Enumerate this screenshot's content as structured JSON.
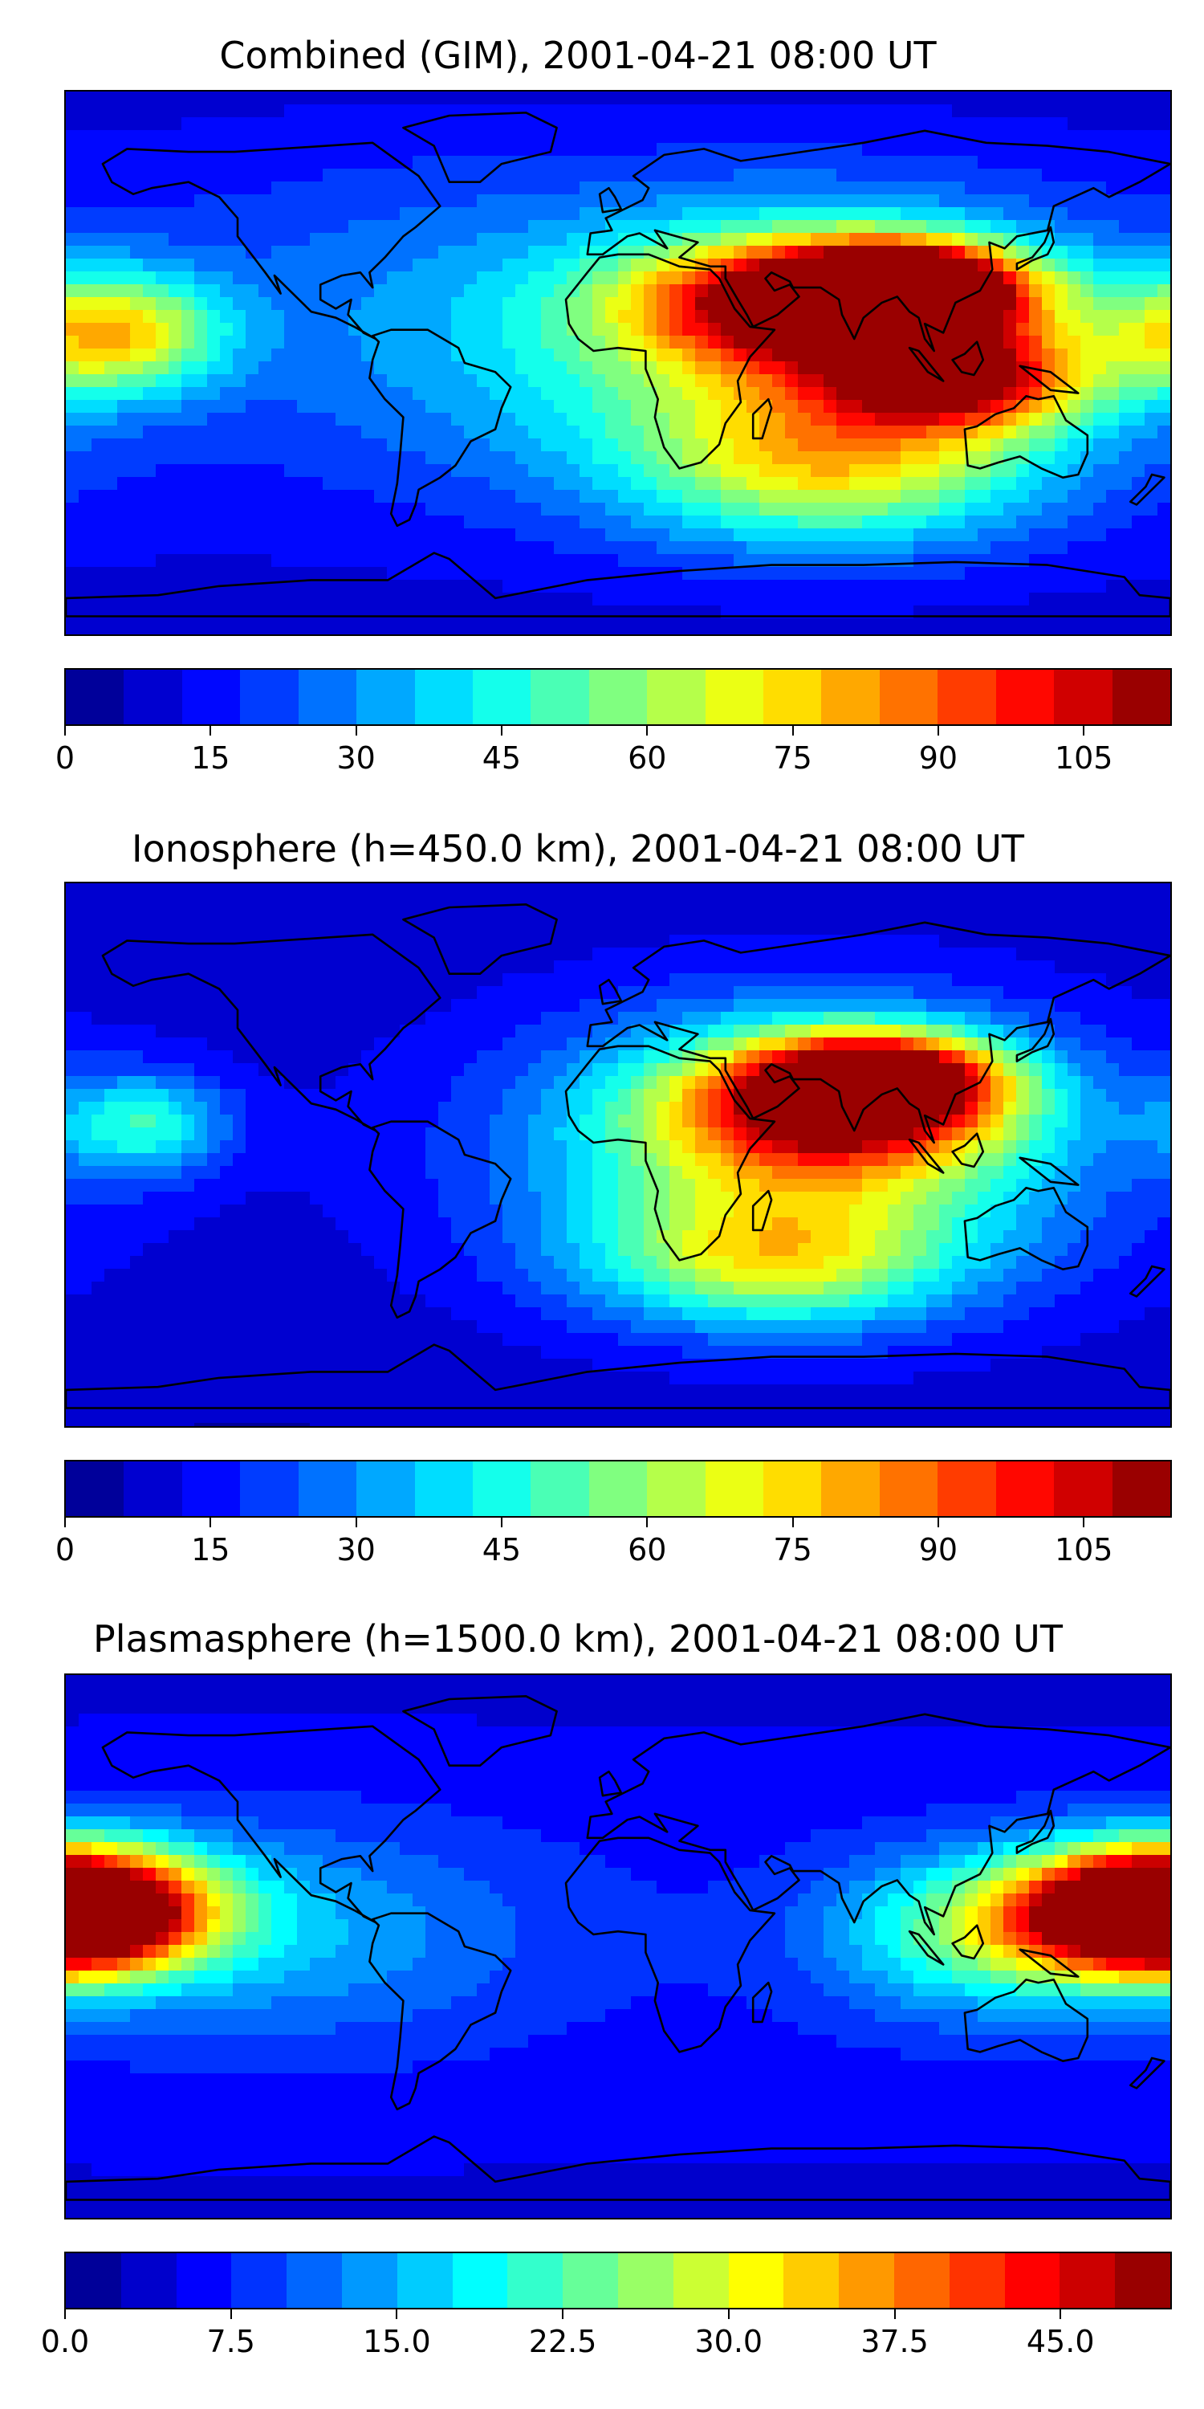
{
  "panels": [
    {
      "title": "Combined (GIM), 2001-04-21 08:00 UT",
      "levels": [
        0,
        6,
        12,
        18,
        24,
        30,
        36,
        42,
        48,
        54,
        60,
        66,
        72,
        78,
        84,
        90,
        96,
        102,
        108,
        114
      ],
      "tick_labels": [
        "0",
        "15",
        "30",
        "45",
        "60",
        "75",
        "90",
        "105"
      ],
      "tick_values": [
        0,
        15,
        30,
        45,
        60,
        75,
        90,
        105
      ],
      "range": [
        0,
        114
      ],
      "blobs": [
        {
          "lon": 95,
          "lat": 25,
          "value": 108,
          "spread_lon": 26,
          "spread_lat": 10
        },
        {
          "lon": 65,
          "lat": 20,
          "value": 95,
          "spread_lon": 40,
          "spread_lat": 14
        },
        {
          "lon": 110,
          "lat": -5,
          "value": 85,
          "spread_lon": 30,
          "spread_lat": 12
        },
        {
          "lon": 60,
          "lat": 5,
          "value": 60,
          "spread_lon": 70,
          "spread_lat": 35
        },
        {
          "lon": 70,
          "lat": -35,
          "value": 55,
          "spread_lon": 45,
          "spread_lat": 18
        },
        {
          "lon": -165,
          "lat": 10,
          "value": 70,
          "spread_lon": 25,
          "spread_lat": 14
        },
        {
          "lon": -80,
          "lat": 20,
          "value": 25,
          "spread_lon": 60,
          "spread_lat": 40
        }
      ],
      "baseline": 14
    },
    {
      "title": "Ionosphere  (h=450.0 km), 2001-04-21 08:00 UT",
      "levels": [
        0,
        6,
        12,
        18,
        24,
        30,
        36,
        42,
        48,
        54,
        60,
        66,
        72,
        78,
        84,
        90,
        96,
        102,
        108,
        114
      ],
      "tick_labels": [
        "0",
        "15",
        "30",
        "45",
        "60",
        "75",
        "90",
        "105"
      ],
      "tick_values": [
        0,
        15,
        30,
        45,
        60,
        75,
        90,
        105
      ],
      "range": [
        0,
        114
      ],
      "blobs": [
        {
          "lon": 85,
          "lat": 25,
          "value": 95,
          "spread_lon": 26,
          "spread_lat": 10
        },
        {
          "lon": 70,
          "lat": 15,
          "value": 75,
          "spread_lon": 40,
          "spread_lat": 16
        },
        {
          "lon": 60,
          "lat": 0,
          "value": 55,
          "spread_lon": 65,
          "spread_lat": 35
        },
        {
          "lon": 50,
          "lat": -35,
          "value": 50,
          "spread_lon": 40,
          "spread_lat": 15
        },
        {
          "lon": -155,
          "lat": 10,
          "value": 45,
          "spread_lon": 20,
          "spread_lat": 12
        }
      ],
      "baseline": 10
    },
    {
      "title": "Plasmasphere (h=1500.0 km), 2001-04-21 08:00 UT",
      "levels": [
        0,
        2.5,
        5,
        7.5,
        10,
        12.5,
        15,
        17.5,
        20,
        22.5,
        25,
        27.5,
        30,
        32.5,
        35,
        37.5,
        40,
        42.5,
        45,
        47.5,
        50
      ],
      "tick_labels": [
        "0.0",
        "7.5",
        "15.0",
        "22.5",
        "30.0",
        "37.5",
        "45.0"
      ],
      "tick_values": [
        0,
        7.5,
        15,
        22.5,
        30,
        37.5,
        45
      ],
      "range": [
        0,
        50
      ],
      "blobs": [
        {
          "lon": -178,
          "lat": 12,
          "value": 46,
          "spread_lon": 30,
          "spread_lat": 14
        },
        {
          "lon": 175,
          "lat": 12,
          "value": 40,
          "spread_lon": 30,
          "spread_lat": 14
        },
        {
          "lon": 120,
          "lat": 5,
          "value": 24,
          "spread_lon": 35,
          "spread_lat": 18
        },
        {
          "lon": -110,
          "lat": 5,
          "value": 15,
          "spread_lon": 55,
          "spread_lat": 25
        }
      ],
      "baseline": 7
    }
  ]
}
